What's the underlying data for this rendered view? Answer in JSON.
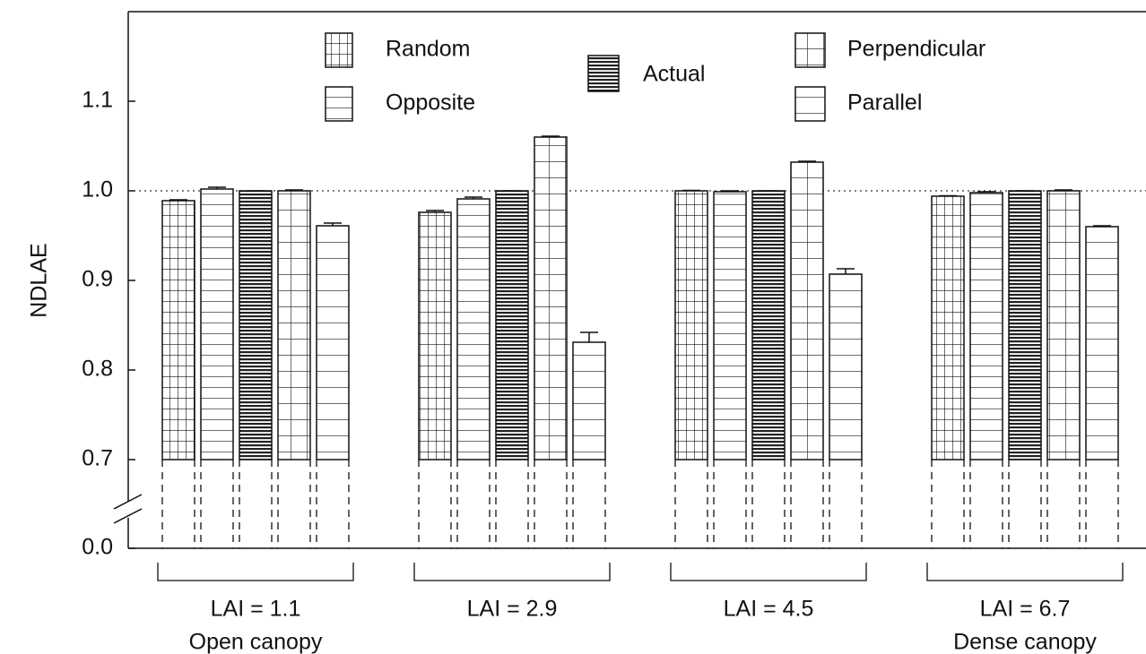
{
  "chart_data": {
    "type": "bar",
    "y_label": "NDLAE",
    "categories": [
      "LAI = 1.1",
      "LAI = 2.9",
      "LAI = 4.5",
      "LAI = 6.7"
    ],
    "category_notes": [
      "Open canopy",
      null,
      null,
      "Dense canopy"
    ],
    "series": [
      {
        "name": "Random",
        "color": "#111111",
        "pattern": "grid-fine",
        "values": [
          0.989,
          0.976,
          1.0,
          0.994
        ],
        "errors": [
          0.001,
          0.002,
          0.0005,
          0.0005
        ]
      },
      {
        "name": "Opposite",
        "color": "#111111",
        "pattern": "hlines",
        "values": [
          1.002,
          0.991,
          0.999,
          0.998
        ],
        "errors": [
          0.002,
          0.002,
          0.001,
          0.001
        ]
      },
      {
        "name": "Actual",
        "color": "#111111",
        "pattern": "hlines-dense",
        "values": [
          1.0,
          1.0,
          1.0,
          1.0
        ],
        "errors": [
          0,
          0,
          0,
          0
        ]
      },
      {
        "name": "Perpendicular",
        "color": "#111111",
        "pattern": "grid-coarse",
        "values": [
          1.0,
          1.06,
          1.032,
          1.0
        ],
        "errors": [
          0.001,
          0.001,
          0.001,
          0.001
        ]
      },
      {
        "name": "Parallel",
        "color": "#111111",
        "pattern": "hlines-wide",
        "values": [
          0.961,
          0.831,
          0.907,
          0.96
        ],
        "errors": [
          0.003,
          0.011,
          0.006,
          0.001
        ]
      }
    ],
    "ylim": [
      0.7,
      1.2
    ],
    "yticks": [
      {
        "value": 0,
        "label": "0.0"
      },
      0.7,
      0.8,
      0.9,
      {
        "value": 1,
        "label": "1.0"
      },
      1.1
    ],
    "axis_break": true,
    "reference_line": 1,
    "grid": false
  }
}
